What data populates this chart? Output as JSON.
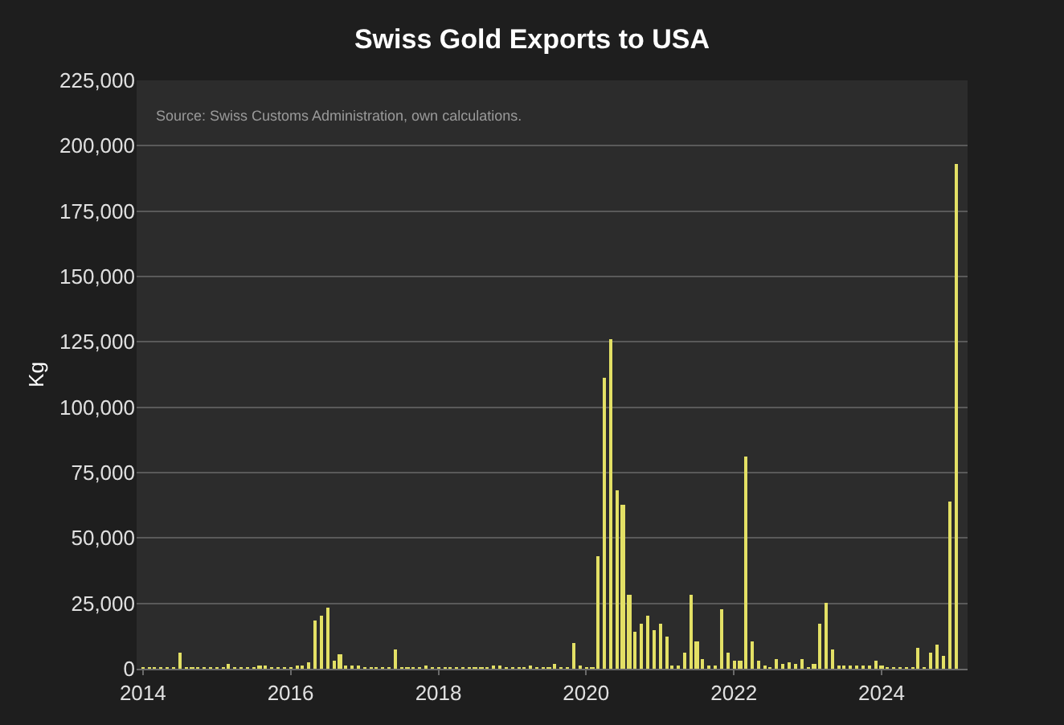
{
  "chart_data": {
    "type": "bar",
    "title": "Swiss Gold Exports to USA",
    "ylabel": "Kg",
    "annotations": [
      "Source: Swiss Customs Administration, own calculations."
    ],
    "x": [
      "2014-01",
      "2014-02",
      "2014-03",
      "2014-04",
      "2014-05",
      "2014-06",
      "2014-07",
      "2014-08",
      "2014-09",
      "2014-10",
      "2014-11",
      "2014-12",
      "2015-01",
      "2015-02",
      "2015-03",
      "2015-04",
      "2015-05",
      "2015-06",
      "2015-07",
      "2015-08",
      "2015-09",
      "2015-10",
      "2015-11",
      "2015-12",
      "2016-01",
      "2016-02",
      "2016-03",
      "2016-04",
      "2016-05",
      "2016-06",
      "2016-07",
      "2016-08",
      "2016-09",
      "2016-10",
      "2016-11",
      "2016-12",
      "2017-01",
      "2017-02",
      "2017-03",
      "2017-04",
      "2017-05",
      "2017-06",
      "2017-07",
      "2017-08",
      "2017-09",
      "2017-10",
      "2017-11",
      "2017-12",
      "2018-01",
      "2018-02",
      "2018-03",
      "2018-04",
      "2018-05",
      "2018-06",
      "2018-07",
      "2018-08",
      "2018-09",
      "2018-10",
      "2018-11",
      "2018-12",
      "2019-01",
      "2019-02",
      "2019-03",
      "2019-04",
      "2019-05",
      "2019-06",
      "2019-07",
      "2019-08",
      "2019-09",
      "2019-10",
      "2019-11",
      "2019-12",
      "2020-01",
      "2020-02",
      "2020-03",
      "2020-04",
      "2020-05",
      "2020-06",
      "2020-07",
      "2020-08",
      "2020-09",
      "2020-10",
      "2020-11",
      "2020-12",
      "2021-01",
      "2021-02",
      "2021-03",
      "2021-04",
      "2021-05",
      "2021-06",
      "2021-07",
      "2021-08",
      "2021-09",
      "2021-10",
      "2021-11",
      "2021-12",
      "2022-01",
      "2022-02",
      "2022-03",
      "2022-04",
      "2022-05",
      "2022-06",
      "2022-07",
      "2022-08",
      "2022-09",
      "2022-10",
      "2022-11",
      "2022-12",
      "2023-01",
      "2023-02",
      "2023-03",
      "2023-04",
      "2023-05",
      "2023-06",
      "2023-07",
      "2023-08",
      "2023-09",
      "2023-10",
      "2023-11",
      "2023-12",
      "2024-01",
      "2024-02",
      "2024-03",
      "2024-04",
      "2024-05",
      "2024-06",
      "2024-07",
      "2024-08",
      "2024-09",
      "2024-10",
      "2024-11",
      "2024-12",
      "2025-01"
    ],
    "values": [
      500,
      500,
      500,
      500,
      500,
      500,
      6000,
      300,
      500,
      500,
      500,
      500,
      300,
      500,
      2000,
      500,
      500,
      500,
      500,
      800,
      1500,
      500,
      300,
      500,
      500,
      800,
      1000,
      2500,
      18500,
      20000,
      23500,
      3000,
      5500,
      1000,
      1500,
      1000,
      500,
      300,
      500,
      500,
      500,
      7500,
      500,
      500,
      500,
      500,
      800,
      300,
      500,
      500,
      500,
      300,
      500,
      500,
      300,
      500,
      500,
      800,
      1000,
      500,
      500,
      500,
      500,
      800,
      500,
      500,
      500,
      2000,
      500,
      500,
      10000,
      800,
      300,
      300,
      43000,
      111000,
      126000,
      68000,
      63000,
      28000,
      14000,
      17500,
      20000,
      14500,
      17000,
      12000,
      1500,
      1500,
      6000,
      28000,
      10500,
      3500,
      1500,
      1000,
      22500,
      6000,
      3000,
      3000,
      81000,
      10500,
      3000,
      1500,
      500,
      3500,
      2000,
      2500,
      2000,
      3500,
      500,
      2000,
      17000,
      25500,
      7500,
      1000,
      1000,
      800,
      1000,
      1000,
      800,
      3000,
      1500,
      500,
      500,
      500,
      500,
      500,
      8000,
      500,
      6000,
      9000,
      5000,
      64000,
      193000
    ],
    "color": "#e3e065",
    "xlim": [
      "2013-12",
      "2025-03"
    ],
    "xticks": [
      "2014",
      "2016",
      "2018",
      "2020",
      "2022",
      "2024"
    ],
    "ylim": [
      0,
      225000
    ],
    "yticks": [
      {
        "value": 0,
        "label": "0"
      },
      {
        "value": 25000,
        "label": "25,000"
      },
      {
        "value": 50000,
        "label": "50,000"
      },
      {
        "value": 75000,
        "label": "75,000"
      },
      {
        "value": 100000,
        "label": "100,000"
      },
      {
        "value": 125000,
        "label": "125,000"
      },
      {
        "value": 150000,
        "label": "150,000"
      },
      {
        "value": 175000,
        "label": "175,000"
      },
      {
        "value": 200000,
        "label": "200,000"
      },
      {
        "value": 225000,
        "label": "225,000"
      }
    ],
    "grid": "y"
  }
}
